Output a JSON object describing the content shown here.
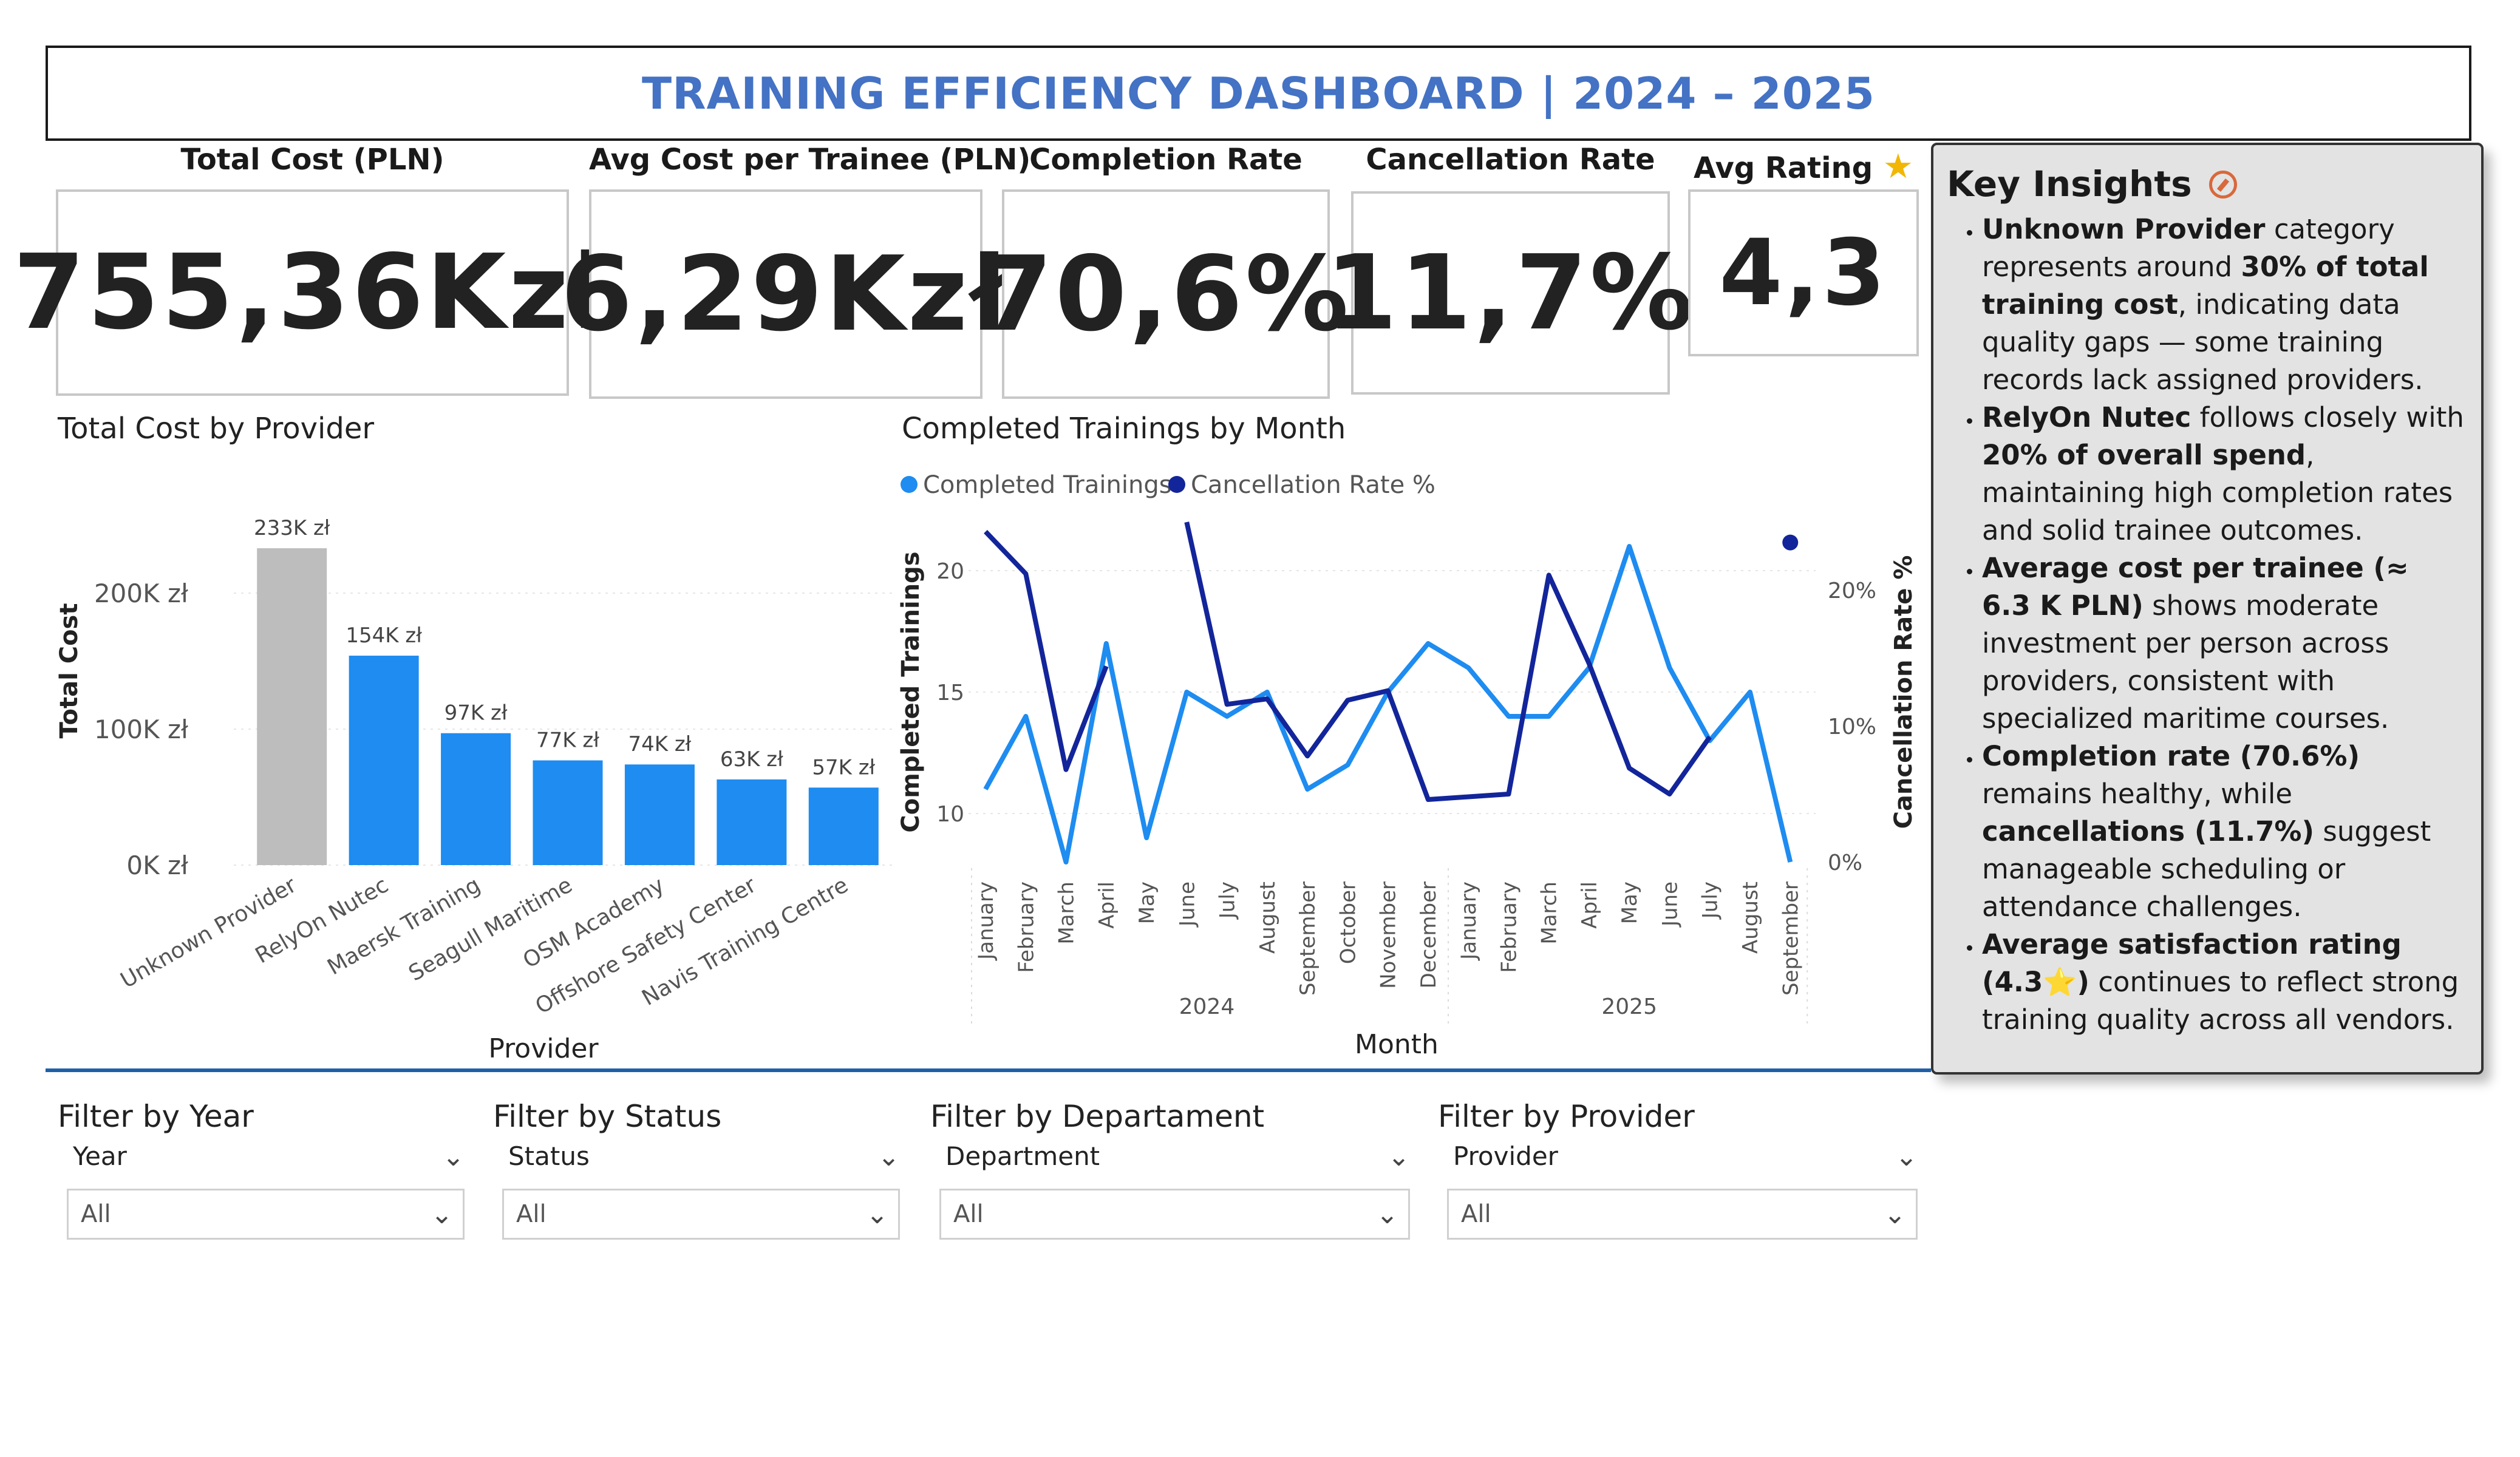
{
  "header": {
    "title": "TRAINING EFFICIENCY DASHBOARD | 2024 – 2025"
  },
  "kpis": {
    "total_cost": {
      "label": "Total Cost (PLN)",
      "value": "755,36Kzł"
    },
    "avg_cost": {
      "label": "Avg Cost per Trainee (PLN)",
      "value": "6,29Kzł"
    },
    "completion": {
      "label": "Completion Rate",
      "value": "70,6%"
    },
    "cancellation": {
      "label": "Cancellation Rate",
      "value": "11,7%"
    },
    "rating": {
      "label": "Avg Rating",
      "value": "4,3",
      "icon": "star-icon"
    }
  },
  "insights": {
    "title": "Key Insights",
    "title_icon": "compass-icon",
    "items": [
      {
        "parts": [
          {
            "b": true,
            "t": "Unknown Provider"
          },
          {
            "b": false,
            "t": " category represents around "
          },
          {
            "b": true,
            "t": "30% of total training cost"
          },
          {
            "b": false,
            "t": ", indicating data quality gaps — some training records lack assigned providers."
          }
        ]
      },
      {
        "parts": [
          {
            "b": true,
            "t": "RelyOn Nutec"
          },
          {
            "b": false,
            "t": " follows closely with "
          },
          {
            "b": true,
            "t": "20% of overall spend"
          },
          {
            "b": false,
            "t": ", maintaining high completion rates and solid trainee outcomes."
          }
        ]
      },
      {
        "parts": [
          {
            "b": true,
            "t": "Average cost per trainee (≈ 6.3 K PLN)"
          },
          {
            "b": false,
            "t": " shows moderate investment per person across providers, consistent with specialized maritime courses."
          }
        ]
      },
      {
        "parts": [
          {
            "b": true,
            "t": "Completion rate (70.6%)"
          },
          {
            "b": false,
            "t": " remains healthy, while "
          },
          {
            "b": true,
            "t": "cancellations (11.7%)"
          },
          {
            "b": false,
            "t": " suggest manageable scheduling or attendance challenges."
          }
        ]
      },
      {
        "parts": [
          {
            "b": true,
            "t": "Average satisfaction rating (4.3⭐)"
          },
          {
            "b": false,
            "t": " continues to reflect strong training quality across all vendors."
          }
        ]
      }
    ]
  },
  "filters": [
    {
      "label": "Filter by Year",
      "field": "Year",
      "value": "All"
    },
    {
      "label": "Filter by Status",
      "field": "Status",
      "value": "All"
    },
    {
      "label": "Filter by Departament",
      "field": "Department",
      "value": "All"
    },
    {
      "label": "Filter by Provider",
      "field": "Provider",
      "value": "All"
    }
  ],
  "colors": {
    "accent": "#1e8cf0",
    "gray_bar": "#bdbdbd",
    "dark_line": "#13259a",
    "title": "#4472c4",
    "divider": "#1f5fa8"
  },
  "chart_data": [
    {
      "type": "bar",
      "title": "Total Cost by Provider",
      "xlabel": "Provider",
      "ylabel": "Total Cost",
      "categories": [
        "Unknown Provider",
        "RelyOn Nutec",
        "Maersk Training",
        "Seagull Maritime",
        "OSM Academy",
        "Offshore Safety Center",
        "Navis Training Centre"
      ],
      "values": [
        233,
        154,
        97,
        77,
        74,
        63,
        57
      ],
      "data_labels": [
        "233K zł",
        "154K zł",
        "97K zł",
        "77K zł",
        "74K zł",
        "63K zł",
        "57K zł"
      ],
      "yticks": [
        "0K zł",
        "100K zł",
        "200K zł"
      ],
      "ylim": [
        0,
        250
      ],
      "highlight_color": [
        "#bdbdbd",
        "#1e8cf0",
        "#1e8cf0",
        "#1e8cf0",
        "#1e8cf0",
        "#1e8cf0",
        "#1e8cf0"
      ]
    },
    {
      "type": "line",
      "title": "Completed Trainings by Month",
      "xlabel": "Month",
      "ylabel": "Completed Trainings",
      "y2label": "Cancellation Rate %",
      "legend": "top-left",
      "years": [
        "2024",
        "2025"
      ],
      "x": [
        "January",
        "February",
        "March",
        "April",
        "May",
        "June",
        "July",
        "August",
        "September",
        "October",
        "November",
        "December",
        "January",
        "February",
        "March",
        "April",
        "May",
        "June",
        "July",
        "August",
        "September"
      ],
      "yticks": [
        "10",
        "15",
        "20"
      ],
      "ylim": [
        8,
        22
      ],
      "y2ticks": [
        "0%",
        "10%",
        "20%"
      ],
      "y2lim": [
        0,
        25
      ],
      "series": [
        {
          "name": "Completed Trainings",
          "axis": "left",
          "color": "#1e8cf0",
          "values": [
            11,
            14,
            8,
            17,
            9,
            15,
            14,
            15,
            11,
            12,
            15,
            17,
            16,
            14,
            14,
            16,
            21,
            16,
            13,
            15,
            8
          ]
        },
        {
          "name": "Cancellation Rate %",
          "axis": "right",
          "color": "#13259a",
          "values": [
            24.3,
            21.2,
            6.8,
            14.4,
            null,
            25,
            11.6,
            12.0,
            7.8,
            11.9,
            12.6,
            4.6,
            4.8,
            5.0,
            21.1,
            14.6,
            6.9,
            5.0,
            9.2,
            null,
            23.5
          ]
        }
      ]
    }
  ]
}
